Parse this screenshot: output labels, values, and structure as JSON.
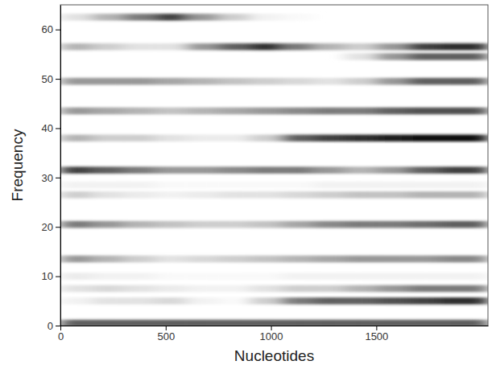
{
  "chart_data": {
    "type": "heatmap",
    "xlabel": "Nucleotides",
    "ylabel": "Frequency",
    "xlim": [
      0,
      2030
    ],
    "ylim": [
      0,
      65
    ],
    "xticks": [
      0,
      500,
      1000,
      1500
    ],
    "yticks": [
      0,
      10,
      20,
      30,
      40,
      50,
      60
    ],
    "color_range": [
      0,
      1
    ],
    "x_bins": [
      0,
      150,
      300,
      450,
      600,
      750,
      900,
      1050,
      1200,
      1350,
      1500,
      1650,
      1800,
      2030
    ],
    "bands": [
      {
        "frequency": 0.5,
        "intensity": [
          0.7,
          0.7,
          0.7,
          0.7,
          0.7,
          0.7,
          0.7,
          0.7,
          0.7,
          0.7,
          0.7,
          0.7,
          0.7
        ]
      },
      {
        "frequency": 5,
        "intensity": [
          0.1,
          0.2,
          0.2,
          0.25,
          0.1,
          0.05,
          0.3,
          0.6,
          0.7,
          0.7,
          0.75,
          0.8,
          0.85
        ]
      },
      {
        "frequency": 7.5,
        "intensity": [
          0.2,
          0.25,
          0.2,
          0.15,
          0.1,
          0.1,
          0.2,
          0.3,
          0.3,
          0.4,
          0.5,
          0.6,
          0.6
        ]
      },
      {
        "frequency": 10,
        "intensity": [
          0.15,
          0.1,
          0.1,
          0.05,
          0.05,
          0.05,
          0.05,
          0.1,
          0.1,
          0.1,
          0.1,
          0.1,
          0.1
        ]
      },
      {
        "frequency": 13.5,
        "intensity": [
          0.5,
          0.4,
          0.3,
          0.2,
          0.25,
          0.3,
          0.35,
          0.4,
          0.45,
          0.5,
          0.5,
          0.5,
          0.55
        ]
      },
      {
        "frequency": 20.5,
        "intensity": [
          0.6,
          0.5,
          0.4,
          0.35,
          0.3,
          0.3,
          0.35,
          0.45,
          0.55,
          0.6,
          0.6,
          0.65,
          0.7
        ]
      },
      {
        "frequency": 26.5,
        "intensity": [
          0.3,
          0.2,
          0.15,
          0.1,
          0.15,
          0.2,
          0.2,
          0.25,
          0.3,
          0.35,
          0.35,
          0.4,
          0.4
        ]
      },
      {
        "frequency": 28.5,
        "intensity": [
          0.1,
          0.1,
          0.1,
          0.05,
          0.05,
          0.05,
          0.05,
          0.05,
          0.1,
          0.1,
          0.1,
          0.1,
          0.1
        ]
      },
      {
        "frequency": 31.5,
        "intensity": [
          0.8,
          0.7,
          0.6,
          0.5,
          0.5,
          0.55,
          0.6,
          0.6,
          0.5,
          0.4,
          0.5,
          0.7,
          0.8
        ]
      },
      {
        "frequency": 38,
        "intensity": [
          0.4,
          0.3,
          0.3,
          0.2,
          0.15,
          0.15,
          0.3,
          0.7,
          0.8,
          0.85,
          0.9,
          0.95,
          0.95
        ]
      },
      {
        "frequency": 43.5,
        "intensity": [
          0.5,
          0.45,
          0.4,
          0.35,
          0.4,
          0.45,
          0.5,
          0.55,
          0.6,
          0.6,
          0.7,
          0.75,
          0.75
        ]
      },
      {
        "frequency": 49.5,
        "intensity": [
          0.5,
          0.5,
          0.5,
          0.45,
          0.4,
          0.35,
          0.3,
          0.25,
          0.2,
          0.3,
          0.5,
          0.7,
          0.7
        ]
      },
      {
        "frequency": 54.5,
        "intensity": [
          0,
          0,
          0,
          0,
          0,
          0,
          0,
          0,
          0,
          0.2,
          0.5,
          0.7,
          0.7
        ]
      },
      {
        "frequency": 56.5,
        "intensity": [
          0.4,
          0.3,
          0.2,
          0.2,
          0.5,
          0.7,
          0.85,
          0.6,
          0.4,
          0.3,
          0.5,
          0.8,
          0.85
        ]
      },
      {
        "frequency": 62.5,
        "intensity": [
          0.2,
          0.4,
          0.6,
          0.8,
          0.5,
          0.3,
          0.1,
          0.05,
          0,
          0,
          0,
          0,
          0
        ]
      }
    ]
  }
}
